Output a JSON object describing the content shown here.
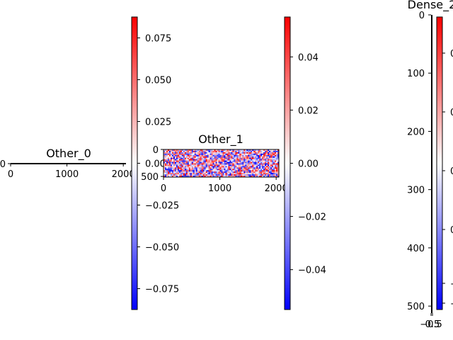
{
  "figure": {
    "background": "#ffffff"
  },
  "chart_data": [
    {
      "type": "heatmap",
      "title": "Other_0",
      "x_ticks": [
        "0",
        "1000",
        "2000"
      ],
      "y_ticks": [
        "0"
      ],
      "xlim": [
        0,
        2048
      ],
      "ylim": [
        0,
        1
      ],
      "colormap": "bwr",
      "colorbar": {
        "min": -0.0875,
        "max": 0.0875,
        "ticks": [
          "0.075",
          "0.050",
          "0.025",
          "0.000",
          "−0.025",
          "−0.050",
          "−0.075"
        ],
        "tick_values": [
          0.075,
          0.05,
          0.025,
          0.0,
          -0.025,
          -0.05,
          -0.075
        ]
      }
    },
    {
      "type": "heatmap",
      "title": "Other_1",
      "x_ticks": [
        "0",
        "1000",
        "2000"
      ],
      "y_ticks": [
        "0",
        "500"
      ],
      "xlim": [
        0,
        2048
      ],
      "ylim": [
        0,
        512
      ],
      "colormap": "bwr",
      "colorbar": {
        "min": -0.055,
        "max": 0.055,
        "ticks": [
          "0.04",
          "0.02",
          "0.00",
          "−0.02",
          "−0.04"
        ],
        "tick_values": [
          0.04,
          0.02,
          0.0,
          -0.02,
          -0.04
        ]
      }
    },
    {
      "type": "heatmap",
      "title": "Dense_2",
      "x_ticks": [
        "−0.5",
        "0.5"
      ],
      "y_ticks": [
        "0",
        "100",
        "200",
        "300",
        "400",
        "500"
      ],
      "xlim": [
        -0.5,
        0.5
      ],
      "ylim": [
        0,
        512
      ],
      "colormap": "bwr",
      "colorbar": {
        "ticks": [
          "0",
          "0",
          "0",
          "0",
          "−",
          "−"
        ]
      }
    }
  ]
}
